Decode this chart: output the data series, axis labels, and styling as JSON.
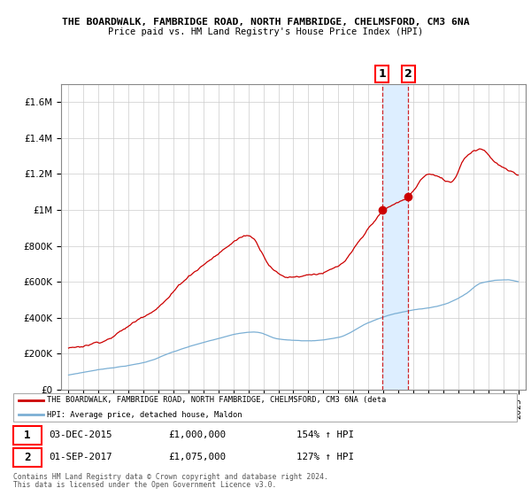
{
  "title1": "THE BOARDWALK, FAMBRIDGE ROAD, NORTH FAMBRIDGE, CHELMSFORD, CM3 6NA",
  "title2": "Price paid vs. HM Land Registry's House Price Index (HPI)",
  "ylabel_ticks": [
    "£0",
    "£200K",
    "£400K",
    "£600K",
    "£800K",
    "£1M",
    "£1.2M",
    "£1.4M",
    "£1.6M"
  ],
  "ylabel_values": [
    0,
    200000,
    400000,
    600000,
    800000,
    1000000,
    1200000,
    1400000,
    1600000
  ],
  "ylim": [
    0,
    1700000
  ],
  "x_start_year": 1995,
  "x_end_year": 2025,
  "red_color": "#cc0000",
  "blue_color": "#7bafd4",
  "highlight_color": "#ddeeff",
  "sale1_date": "03-DEC-2015",
  "sale1_price": 1000000,
  "sale1_hpi": "154% ↑ HPI",
  "sale1_x": 2015.917,
  "sale2_date": "01-SEP-2017",
  "sale2_price": 1075000,
  "sale2_hpi": "127% ↑ HPI",
  "sale2_x": 2017.667,
  "legend_line1": "THE BOARDWALK, FAMBRIDGE ROAD, NORTH FAMBRIDGE, CHELMSFORD, CM3 6NA (deta",
  "legend_line2": "HPI: Average price, detached house, Maldon",
  "footnote1": "Contains HM Land Registry data © Crown copyright and database right 2024.",
  "footnote2": "This data is licensed under the Open Government Licence v3.0."
}
